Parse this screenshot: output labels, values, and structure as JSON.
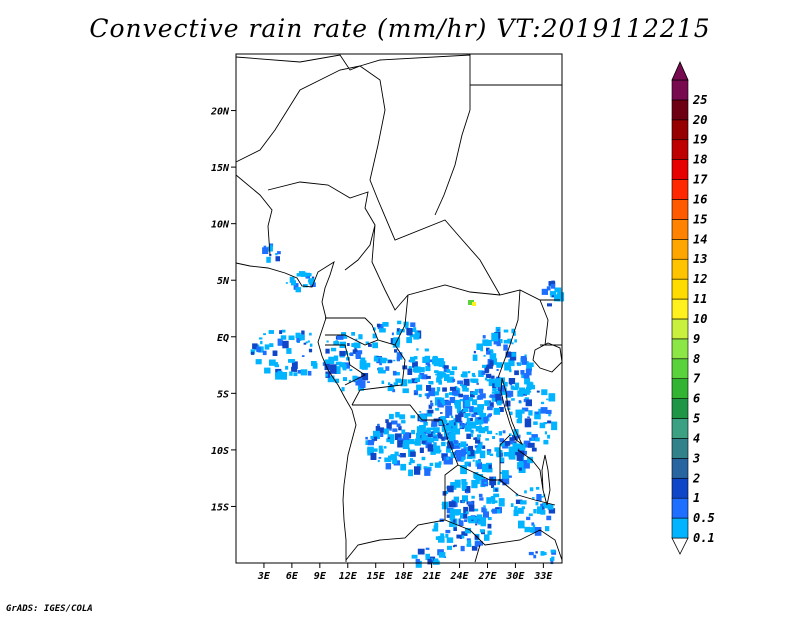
{
  "title": "Convective rain rate (mm/hr) VT:2019112215",
  "credit": "GrADS: IGES/COLA",
  "map": {
    "lon_range": [
      0,
      35
    ],
    "lat_range": [
      -20,
      25
    ],
    "lon_ticks": [
      {
        "value": 3,
        "label": "3E"
      },
      {
        "value": 6,
        "label": "6E"
      },
      {
        "value": 9,
        "label": "9E"
      },
      {
        "value": 12,
        "label": "12E"
      },
      {
        "value": 15,
        "label": "15E"
      },
      {
        "value": 18,
        "label": "18E"
      },
      {
        "value": 21,
        "label": "21E"
      },
      {
        "value": 24,
        "label": "24E"
      },
      {
        "value": 27,
        "label": "27E"
      },
      {
        "value": 30,
        "label": "30E"
      },
      {
        "value": 33,
        "label": "33E"
      }
    ],
    "lat_ticks": [
      {
        "value": 20,
        "label": "20N"
      },
      {
        "value": 15,
        "label": "15N"
      },
      {
        "value": 10,
        "label": "10N"
      },
      {
        "value": 5,
        "label": "5N"
      },
      {
        "value": 0,
        "label": "EQ"
      },
      {
        "value": -5,
        "label": "5S"
      },
      {
        "value": -10,
        "label": "10S"
      },
      {
        "value": -15,
        "label": "15S"
      }
    ],
    "rain_color": "#1e90ff"
  },
  "colorbar": {
    "labels": [
      "0.1",
      "0.5",
      "1",
      "2",
      "3",
      "4",
      "5",
      "6",
      "7",
      "8",
      "9",
      "10",
      "11",
      "12",
      "13",
      "14",
      "15",
      "16",
      "17",
      "18",
      "19",
      "20",
      "25"
    ],
    "colors": [
      "#00b4ff",
      "#1e6eff",
      "#0f46c8",
      "#2864a0",
      "#32828c",
      "#3ca082",
      "#1e9646",
      "#32b432",
      "#5ad23c",
      "#8ce646",
      "#c8f03c",
      "#fff01e",
      "#ffdc00",
      "#ffc300",
      "#ffa500",
      "#ff8200",
      "#ff5a00",
      "#ff2800",
      "#e60000",
      "#be0000",
      "#960000",
      "#6e0014",
      "#780a50"
    ]
  }
}
